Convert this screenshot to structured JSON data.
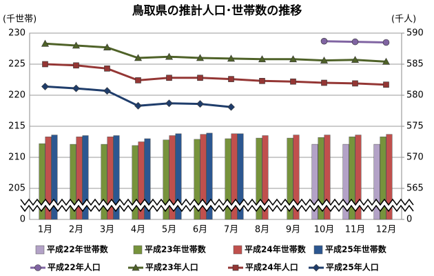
{
  "chart_data": {
    "type": "bar",
    "title": "鳥取県の推計人口･世帯数の推移",
    "ylabel": "(千世帯)",
    "y2label": "(千人)",
    "categories": [
      "1月",
      "2月",
      "3月",
      "4月",
      "5月",
      "6月",
      "7月",
      "8月",
      "9月",
      "10月",
      "11月",
      "12月"
    ],
    "ylim": [
      200,
      230
    ],
    "yticks": [
      {
        "value": 200,
        "label": "0"
      },
      205,
      210,
      215,
      220,
      225,
      230
    ],
    "y2lim": [
      560,
      590
    ],
    "y2ticks": [
      {
        "value": 560,
        "label": "0"
      },
      565,
      570,
      575,
      580,
      585,
      590
    ],
    "grid": true,
    "legend": "bottom",
    "series": [
      {
        "name": "平成22年世帯数",
        "type": "bar",
        "color": "#b3a2c7",
        "values": [
          null,
          null,
          null,
          null,
          null,
          null,
          null,
          null,
          null,
          212.1,
          212.1,
          212.1
        ]
      },
      {
        "name": "平成23年世帯数",
        "type": "bar",
        "color": "#77933c",
        "values": [
          212.2,
          212.1,
          212.1,
          211.9,
          212.8,
          212.9,
          213.0,
          213.1,
          213.1,
          213.2,
          213.3,
          213.3
        ]
      },
      {
        "name": "平成24年世帯数",
        "type": "bar",
        "color": "#c0504d",
        "values": [
          213.3,
          213.3,
          213.3,
          212.5,
          213.5,
          213.7,
          213.8,
          213.5,
          213.6,
          213.6,
          213.6,
          213.7
        ]
      },
      {
        "name": "平成25年世帯数",
        "type": "bar",
        "color": "#2c5790",
        "values": [
          213.6,
          213.5,
          213.5,
          213.0,
          213.8,
          213.9,
          213.8,
          null,
          null,
          null,
          null,
          null
        ]
      },
      {
        "name": "平成22年人口",
        "type": "line",
        "axis": "y2",
        "marker": "circle",
        "color": "#8064a2",
        "values": [
          null,
          null,
          null,
          null,
          null,
          null,
          null,
          null,
          null,
          588.7,
          588.6,
          588.5
        ]
      },
      {
        "name": "平成23年人口",
        "type": "line",
        "axis": "y2",
        "marker": "triangle",
        "color": "#4f6228",
        "values": [
          588.3,
          588.0,
          587.7,
          586.0,
          586.2,
          586.0,
          585.9,
          585.8,
          585.8,
          585.6,
          585.7,
          585.4
        ]
      },
      {
        "name": "平成24年人口",
        "type": "line",
        "axis": "y2",
        "marker": "square",
        "color": "#943634",
        "values": [
          585.0,
          584.8,
          584.3,
          582.4,
          582.8,
          582.8,
          582.6,
          582.3,
          582.2,
          582.0,
          581.9,
          581.7
        ]
      },
      {
        "name": "平成25年人口",
        "type": "line",
        "axis": "y2",
        "marker": "diamond",
        "color": "#1f3d6b",
        "values": [
          581.4,
          581.1,
          580.7,
          578.3,
          578.7,
          578.6,
          578.1,
          null,
          null,
          null,
          null,
          null
        ]
      }
    ]
  }
}
